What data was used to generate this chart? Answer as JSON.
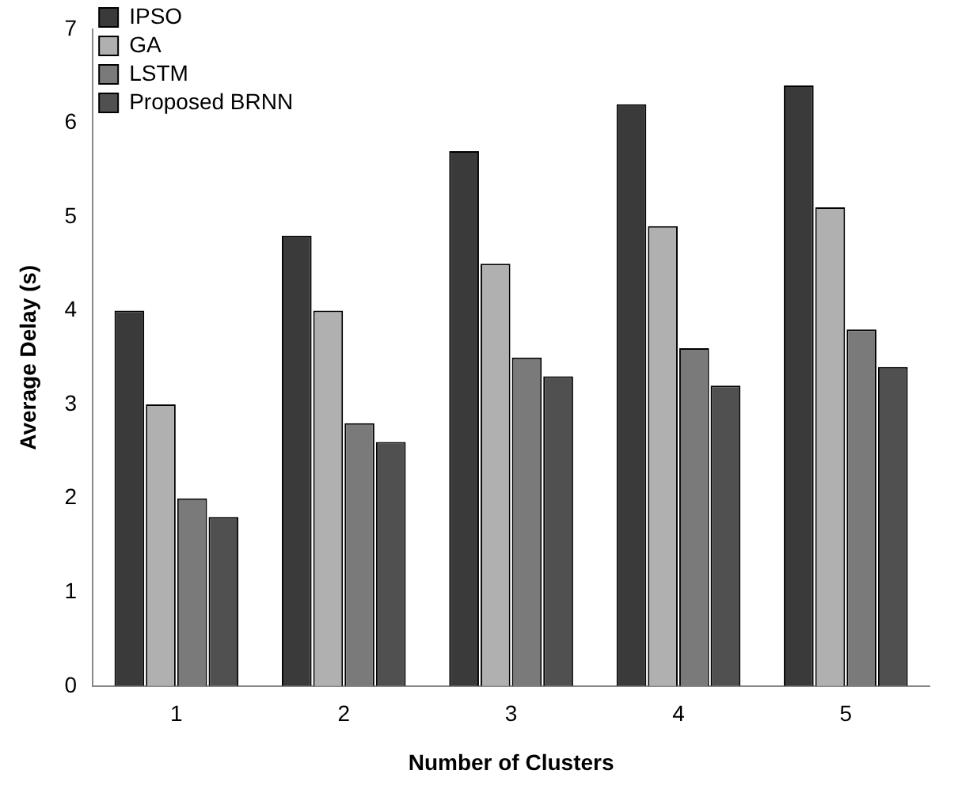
{
  "chart_data": {
    "type": "bar",
    "xlabel": "Number of Clusters",
    "ylabel": "Average Delay (s)",
    "categories": [
      "1",
      "2",
      "3",
      "4",
      "5"
    ],
    "series": [
      {
        "name": "IPSO",
        "color": "#3a3a3a",
        "values": [
          4.0,
          4.8,
          5.7,
          6.2,
          6.4
        ]
      },
      {
        "name": "GA",
        "color": "#b0b0b0",
        "values": [
          3.0,
          4.0,
          4.5,
          4.9,
          5.1
        ]
      },
      {
        "name": "LSTM",
        "color": "#7a7a7a",
        "values": [
          2.0,
          2.8,
          3.5,
          3.6,
          3.8
        ]
      },
      {
        "name": "Proposed BRNN",
        "color": "#505050",
        "values": [
          1.8,
          2.6,
          3.3,
          3.2,
          3.4
        ]
      }
    ],
    "ylim": [
      0,
      7
    ],
    "yticks": [
      0,
      1,
      2,
      3,
      4,
      5,
      6,
      7
    ],
    "grid": false,
    "legend": "top left"
  }
}
